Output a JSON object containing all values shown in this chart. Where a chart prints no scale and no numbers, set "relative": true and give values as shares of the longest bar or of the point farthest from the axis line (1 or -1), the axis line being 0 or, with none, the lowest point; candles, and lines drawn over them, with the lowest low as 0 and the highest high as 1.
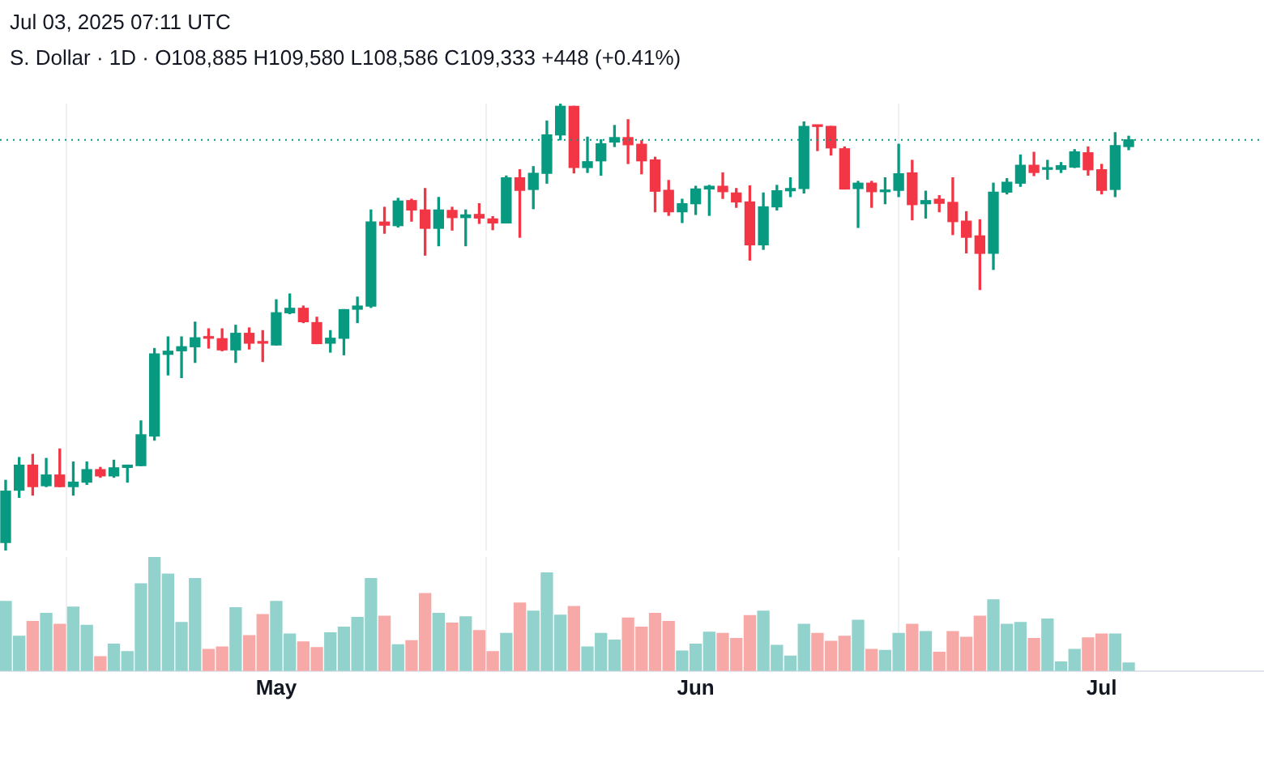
{
  "chart_data": [
    {
      "type": "candlestick",
      "title": "Jul 03, 2025 07:11 UTC",
      "subtitle": "S. Dollar · 1D · O108,885 H109,580 L108,586 C109,333 +448 (+0.41%)",
      "relative": true,
      "grid": "x",
      "tick_labels": false,
      "x": [
        "2025-04-11",
        "2025-04-12",
        "2025-04-13",
        "2025-04-14",
        "2025-04-15",
        "2025-04-16",
        "2025-04-17",
        "2025-04-18",
        "2025-04-19",
        "2025-04-20",
        "2025-04-21",
        "2025-04-22",
        "2025-04-23",
        "2025-04-24",
        "2025-04-25",
        "2025-04-26",
        "2025-04-27",
        "2025-04-28",
        "2025-04-29",
        "2025-04-30",
        "2025-05-01",
        "2025-05-02",
        "2025-05-03",
        "2025-05-04",
        "2025-05-05",
        "2025-05-06",
        "2025-05-07",
        "2025-05-08",
        "2025-05-09",
        "2025-05-10",
        "2025-05-11",
        "2025-05-12",
        "2025-05-13",
        "2025-05-14",
        "2025-05-15",
        "2025-05-16",
        "2025-05-17",
        "2025-05-18",
        "2025-05-19",
        "2025-05-20",
        "2025-05-21",
        "2025-05-22",
        "2025-05-23",
        "2025-05-24",
        "2025-05-25",
        "2025-05-26",
        "2025-05-27",
        "2025-05-28",
        "2025-05-29",
        "2025-05-30",
        "2025-05-31",
        "2025-06-01",
        "2025-06-02",
        "2025-06-03",
        "2025-06-04",
        "2025-06-05",
        "2025-06-06",
        "2025-06-07",
        "2025-06-08",
        "2025-06-09",
        "2025-06-10",
        "2025-06-11",
        "2025-06-12",
        "2025-06-13",
        "2025-06-14",
        "2025-06-15",
        "2025-06-16",
        "2025-06-17",
        "2025-06-18",
        "2025-06-19",
        "2025-06-20",
        "2025-06-21",
        "2025-06-22",
        "2025-06-23",
        "2025-06-24",
        "2025-06-25",
        "2025-06-26",
        "2025-06-27",
        "2025-06-28",
        "2025-06-29",
        "2025-06-30",
        "2025-07-01",
        "2025-07-02",
        "2025-07-03"
      ],
      "xlim": [
        "2025-04-10T14:00",
        "2025-07-13T00:00"
      ],
      "xticks": [
        {
          "value": "2025-05-01",
          "label": null
        },
        {
          "value": "2025-06-01",
          "label": null
        },
        {
          "value": "2025-07-01",
          "label": null
        }
      ],
      "ref_lines": [
        {
          "axis": "y",
          "value": 0.919,
          "color": "#089981",
          "line_style": "dotted"
        }
      ],
      "colors": [
        "#089981",
        "#089981",
        "#f23645",
        "#089981",
        "#f23645",
        "#089981",
        "#089981",
        "#f23645",
        "#089981",
        "#089981",
        "#089981",
        "#089981",
        "#089981",
        "#089981",
        "#089981",
        "#f23645",
        "#f23645",
        "#089981",
        "#f23645",
        "#f23645",
        "#089981",
        "#089981",
        "#f23645",
        "#f23645",
        "#089981",
        "#089981",
        "#089981",
        "#089981",
        "#f23645",
        "#089981",
        "#f23645",
        "#f23645",
        "#089981",
        "#f23645",
        "#089981",
        "#f23645",
        "#f23645",
        "#089981",
        "#f23645",
        "#089981",
        "#089981",
        "#089981",
        "#f23645",
        "#089981",
        "#089981",
        "#089981",
        "#f23645",
        "#f23645",
        "#f23645",
        "#f23645",
        "#089981",
        "#089981",
        "#089981",
        "#f23645",
        "#f23645",
        "#f23645",
        "#089981",
        "#089981",
        "#089981",
        "#089981",
        "#f23645",
        "#f23645",
        "#f23645",
        "#089981",
        "#f23645",
        "#089981",
        "#089981",
        "#f23645",
        "#089981",
        "#f23645",
        "#f23645",
        "#f23645",
        "#f23645",
        "#089981",
        "#089981",
        "#089981",
        "#f23645",
        "#089981",
        "#089981",
        "#089981",
        "#f23645",
        "#f23645",
        "#089981",
        "#089981"
      ],
      "ohlc": [
        [
          0.018,
          0.157,
          0,
          0.133
        ],
        [
          0.135,
          0.208,
          0.119,
          0.191
        ],
        [
          0.191,
          0.215,
          0.124,
          0.143
        ],
        [
          0.145,
          0.206,
          0.143,
          0.169
        ],
        [
          0.169,
          0.227,
          0.143,
          0.143
        ],
        [
          0.143,
          0.198,
          0.124,
          0.153
        ],
        [
          0.153,
          0.198,
          0.148,
          0.181
        ],
        [
          0.181,
          0.186,
          0.164,
          0.167
        ],
        [
          0.167,
          0.202,
          0.164,
          0.185
        ],
        [
          0.186,
          0.191,
          0.153,
          0.191
        ],
        [
          0.19,
          0.29,
          0.19,
          0.259
        ],
        [
          0.256,
          0.452,
          0.247,
          0.44
        ],
        [
          0.439,
          0.478,
          0.393,
          0.446
        ],
        [
          0.447,
          0.478,
          0.387,
          0.456
        ],
        [
          0.456,
          0.511,
          0.421,
          0.476
        ],
        [
          0.478,
          0.496,
          0.453,
          0.475
        ],
        [
          0.474,
          0.496,
          0.447,
          0.449
        ],
        [
          0.449,
          0.504,
          0.421,
          0.486
        ],
        [
          0.486,
          0.498,
          0.451,
          0.464
        ],
        [
          0.467,
          0.492,
          0.423,
          0.464
        ],
        [
          0.46,
          0.561,
          0.46,
          0.532
        ],
        [
          0.532,
          0.574,
          0.53,
          0.542
        ],
        [
          0.542,
          0.547,
          0.51,
          0.512
        ],
        [
          0.51,
          0.522,
          0.463,
          0.463
        ],
        [
          0.464,
          0.492,
          0.444,
          0.475
        ],
        [
          0.475,
          0.539,
          0.438,
          0.539
        ],
        [
          0.54,
          0.567,
          0.51,
          0.547
        ],
        [
          0.547,
          0.762,
          0.544,
          0.735
        ],
        [
          0.735,
          0.768,
          0.71,
          0.728
        ],
        [
          0.727,
          0.788,
          0.724,
          0.782
        ],
        [
          0.783,
          0.786,
          0.737,
          0.762
        ],
        [
          0.762,
          0.81,
          0.661,
          0.721
        ],
        [
          0.721,
          0.79,
          0.682,
          0.762
        ],
        [
          0.761,
          0.768,
          0.717,
          0.745
        ],
        [
          0.745,
          0.762,
          0.682,
          0.751
        ],
        [
          0.752,
          0.776,
          0.732,
          0.744
        ],
        [
          0.742,
          0.747,
          0.718,
          0.733
        ],
        [
          0.733,
          0.838,
          0.733,
          0.834
        ],
        [
          0.834,
          0.852,
          0.701,
          0.806
        ],
        [
          0.808,
          0.859,
          0.765,
          0.844
        ],
        [
          0.844,
          0.961,
          0.822,
          0.93
        ],
        [
          0.93,
          1,
          0.919,
          0.994
        ],
        [
          0.994,
          0.994,
          0.845,
          0.857
        ],
        [
          0.857,
          0.925,
          0.846,
          0.87
        ],
        [
          0.872,
          0.919,
          0.84,
          0.91
        ],
        [
          0.914,
          0.951,
          0.904,
          0.924
        ],
        [
          0.924,
          0.964,
          0.866,
          0.908
        ],
        [
          0.909,
          0.917,
          0.843,
          0.872
        ],
        [
          0.874,
          0.88,
          0.758,
          0.804
        ],
        [
          0.806,
          0.828,
          0.75,
          0.758
        ],
        [
          0.758,
          0.786,
          0.734,
          0.776
        ],
        [
          0.776,
          0.815,
          0.752,
          0.809
        ],
        [
          0.809,
          0.817,
          0.75,
          0.815
        ],
        [
          0.815,
          0.845,
          0.788,
          0.803
        ],
        [
          0.8,
          0.81,
          0.768,
          0.78
        ],
        [
          0.78,
          0.816,
          0.65,
          0.684
        ],
        [
          0.684,
          0.8,
          0.674,
          0.769
        ],
        [
          0.769,
          0.817,
          0.762,
          0.805
        ],
        [
          0.805,
          0.834,
          0.792,
          0.81
        ],
        [
          0.81,
          0.959,
          0.8,
          0.949
        ],
        [
          0.951,
          0.951,
          0.895,
          0.949
        ],
        [
          0.949,
          0.949,
          0.885,
          0.901
        ],
        [
          0.899,
          0.903,
          0.809,
          0.809
        ],
        [
          0.81,
          0.826,
          0.723,
          0.822
        ],
        [
          0.822,
          0.826,
          0.768,
          0.803
        ],
        [
          0.803,
          0.834,
          0.776,
          0.806
        ],
        [
          0.806,
          0.909,
          0.792,
          0.843
        ],
        [
          0.845,
          0.873,
          0.74,
          0.774
        ],
        [
          0.776,
          0.804,
          0.744,
          0.783
        ],
        [
          0.786,
          0.794,
          0.758,
          0.777
        ],
        [
          0.779,
          0.834,
          0.707,
          0.736
        ],
        [
          0.737,
          0.758,
          0.666,
          0.701
        ],
        [
          0.704,
          0.74,
          0.584,
          0.665
        ],
        [
          0.665,
          0.822,
          0.629,
          0.802
        ],
        [
          0.802,
          0.832,
          0.798,
          0.824
        ],
        [
          0.822,
          0.885,
          0.815,
          0.862
        ],
        [
          0.862,
          0.891,
          0.839,
          0.846
        ],
        [
          0.853,
          0.873,
          0.831,
          0.856
        ],
        [
          0.853,
          0.868,
          0.846,
          0.861
        ],
        [
          0.858,
          0.897,
          0.857,
          0.892
        ],
        [
          0.89,
          0.903,
          0.84,
          0.852
        ],
        [
          0.852,
          0.864,
          0.798,
          0.806
        ],
        [
          0.808,
          0.935,
          0.792,
          0.906
        ],
        [
          0.904,
          0.927,
          0.897,
          0.919
        ]
      ]
    },
    {
      "type": "bar",
      "relative": true,
      "grid": "x",
      "x": [
        "2025-04-11",
        "2025-04-12",
        "2025-04-13",
        "2025-04-14",
        "2025-04-15",
        "2025-04-16",
        "2025-04-17",
        "2025-04-18",
        "2025-04-19",
        "2025-04-20",
        "2025-04-21",
        "2025-04-22",
        "2025-04-23",
        "2025-04-24",
        "2025-04-25",
        "2025-04-26",
        "2025-04-27",
        "2025-04-28",
        "2025-04-29",
        "2025-04-30",
        "2025-05-01",
        "2025-05-02",
        "2025-05-03",
        "2025-05-04",
        "2025-05-05",
        "2025-05-06",
        "2025-05-07",
        "2025-05-08",
        "2025-05-09",
        "2025-05-10",
        "2025-05-11",
        "2025-05-12",
        "2025-05-13",
        "2025-05-14",
        "2025-05-15",
        "2025-05-16",
        "2025-05-17",
        "2025-05-18",
        "2025-05-19",
        "2025-05-20",
        "2025-05-21",
        "2025-05-22",
        "2025-05-23",
        "2025-05-24",
        "2025-05-25",
        "2025-05-26",
        "2025-05-27",
        "2025-05-28",
        "2025-05-29",
        "2025-05-30",
        "2025-05-31",
        "2025-06-01",
        "2025-06-02",
        "2025-06-03",
        "2025-06-04",
        "2025-06-05",
        "2025-06-06",
        "2025-06-07",
        "2025-06-08",
        "2025-06-09",
        "2025-06-10",
        "2025-06-11",
        "2025-06-12",
        "2025-06-13",
        "2025-06-14",
        "2025-06-15",
        "2025-06-16",
        "2025-06-17",
        "2025-06-18",
        "2025-06-19",
        "2025-06-20",
        "2025-06-21",
        "2025-06-22",
        "2025-06-23",
        "2025-06-24",
        "2025-06-25",
        "2025-06-26",
        "2025-06-27",
        "2025-06-28",
        "2025-06-29",
        "2025-06-30",
        "2025-07-01",
        "2025-07-02",
        "2025-07-03"
      ],
      "xlim": [
        "2025-04-10T14:00",
        "2025-07-13T00:00"
      ],
      "xticks": [
        {
          "value": "2025-05-01",
          "label": "May"
        },
        {
          "value": "2025-06-01",
          "label": "Jun"
        },
        {
          "value": "2025-07-01",
          "label": "Jul"
        }
      ],
      "colors": [
        "#92d2cc",
        "#92d2cc",
        "#f7a9a7",
        "#92d2cc",
        "#f7a9a7",
        "#92d2cc",
        "#92d2cc",
        "#f7a9a7",
        "#92d2cc",
        "#92d2cc",
        "#92d2cc",
        "#92d2cc",
        "#92d2cc",
        "#92d2cc",
        "#92d2cc",
        "#f7a9a7",
        "#f7a9a7",
        "#92d2cc",
        "#f7a9a7",
        "#f7a9a7",
        "#92d2cc",
        "#92d2cc",
        "#f7a9a7",
        "#f7a9a7",
        "#92d2cc",
        "#92d2cc",
        "#92d2cc",
        "#92d2cc",
        "#f7a9a7",
        "#92d2cc",
        "#f7a9a7",
        "#f7a9a7",
        "#92d2cc",
        "#f7a9a7",
        "#92d2cc",
        "#f7a9a7",
        "#f7a9a7",
        "#92d2cc",
        "#f7a9a7",
        "#92d2cc",
        "#92d2cc",
        "#92d2cc",
        "#f7a9a7",
        "#92d2cc",
        "#92d2cc",
        "#92d2cc",
        "#f7a9a7",
        "#f7a9a7",
        "#f7a9a7",
        "#f7a9a7",
        "#92d2cc",
        "#92d2cc",
        "#92d2cc",
        "#f7a9a7",
        "#f7a9a7",
        "#f7a9a7",
        "#92d2cc",
        "#92d2cc",
        "#92d2cc",
        "#92d2cc",
        "#f7a9a7",
        "#f7a9a7",
        "#f7a9a7",
        "#92d2cc",
        "#f7a9a7",
        "#92d2cc",
        "#92d2cc",
        "#f7a9a7",
        "#92d2cc",
        "#f7a9a7",
        "#f7a9a7",
        "#f7a9a7",
        "#f7a9a7",
        "#92d2cc",
        "#92d2cc",
        "#92d2cc",
        "#f7a9a7",
        "#92d2cc",
        "#92d2cc",
        "#92d2cc",
        "#f7a9a7",
        "#f7a9a7",
        "#92d2cc",
        "#92d2cc"
      ],
      "values": [
        0.61,
        0.305,
        0.435,
        0.505,
        0.41,
        0.56,
        0.4,
        0.125,
        0.235,
        0.17,
        0.765,
        1,
        0.85,
        0.425,
        0.81,
        0.19,
        0.21,
        0.555,
        0.31,
        0.495,
        0.61,
        0.325,
        0.255,
        0.205,
        0.335,
        0.385,
        0.47,
        0.81,
        0.48,
        0.23,
        0.265,
        0.68,
        0.505,
        0.42,
        0.475,
        0.355,
        0.17,
        0.33,
        0.595,
        0.525,
        0.86,
        0.49,
        0.565,
        0.21,
        0.33,
        0.27,
        0.465,
        0.385,
        0.505,
        0.435,
        0.175,
        0.235,
        0.34,
        0.33,
        0.285,
        0.485,
        0.525,
        0.225,
        0.13,
        0.41,
        0.33,
        0.26,
        0.305,
        0.445,
        0.19,
        0.18,
        0.33,
        0.41,
        0.345,
        0.165,
        0.345,
        0.295,
        0.48,
        0.625,
        0.41,
        0.425,
        0.285,
        0.455,
        0.08,
        0.19,
        0.29,
        0.325,
        0.325,
        0.07
      ]
    }
  ]
}
